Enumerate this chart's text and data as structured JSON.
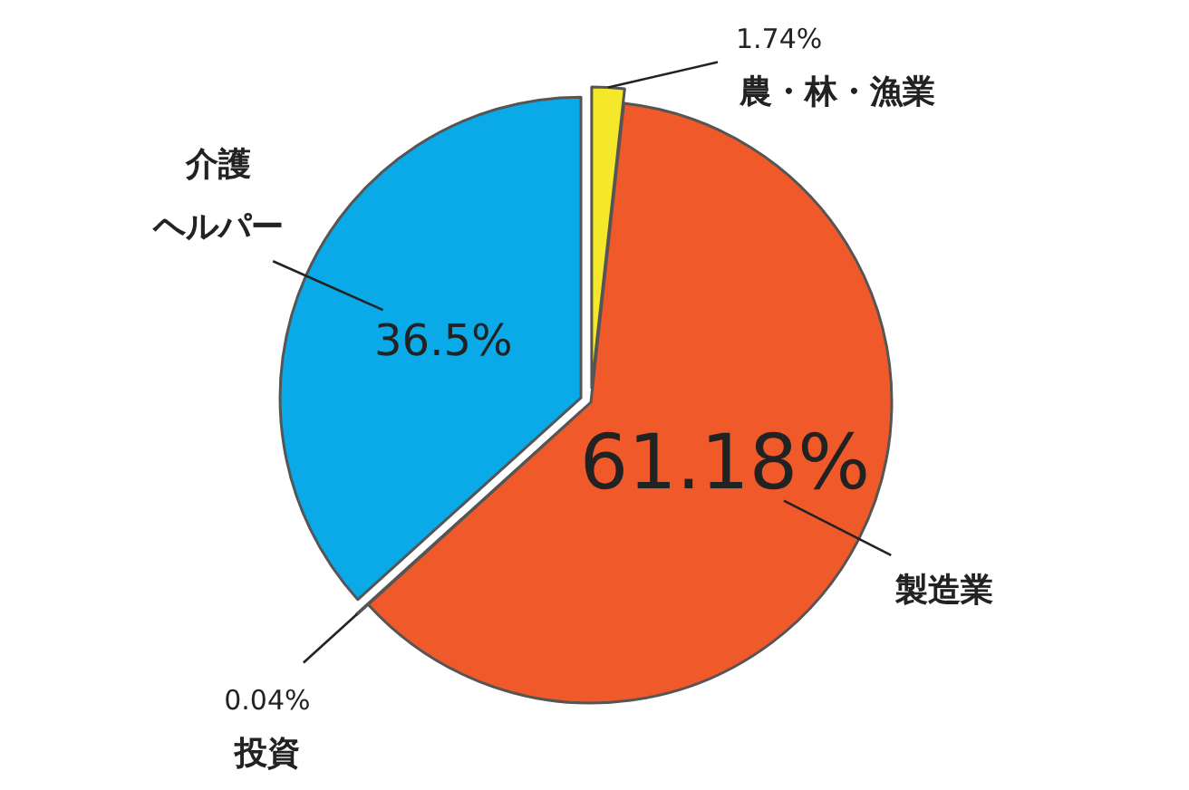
{
  "chart_data": {
    "type": "pie",
    "categories": [
      "農・林・漁業",
      "製造業",
      "投資",
      "介護ヘルパー"
    ],
    "values": [
      1.74,
      61.18,
      0.04,
      36.5
    ],
    "value_labels": [
      "1.74%",
      "61.18%",
      "0.04%",
      "36.5%"
    ],
    "colors": [
      "#f5e82a",
      "#f05a2b",
      "#0e6b3c",
      "#0aaae8"
    ]
  }
}
